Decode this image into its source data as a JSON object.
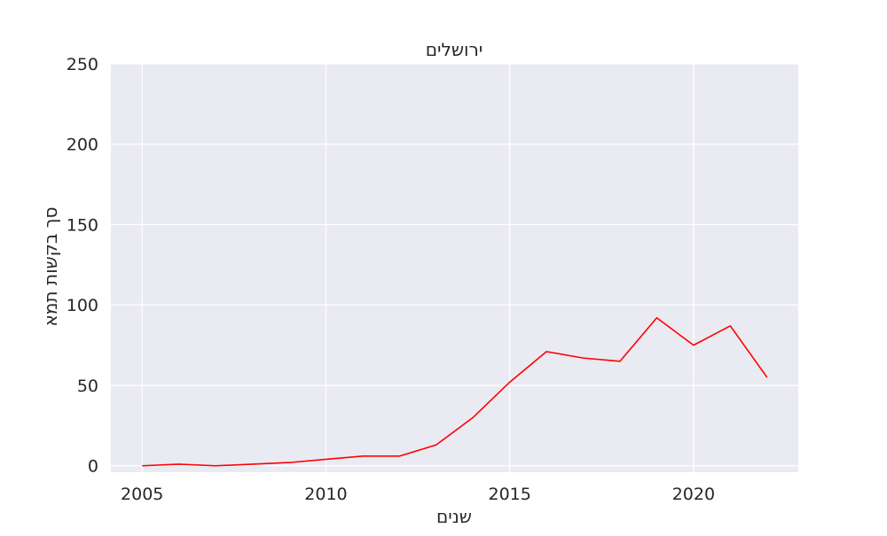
{
  "chart_data": {
    "type": "line",
    "title": "ירושלים",
    "xlabel": "שנים",
    "ylabel": "סך בקשות תמא",
    "x": [
      2005,
      2006,
      2007,
      2008,
      2009,
      2010,
      2011,
      2012,
      2013,
      2014,
      2015,
      2016,
      2017,
      2018,
      2019,
      2020,
      2021,
      2022
    ],
    "series": [
      {
        "values": [
          0,
          1,
          0,
          1,
          2,
          4,
          6,
          6,
          13,
          30,
          52,
          71,
          67,
          65,
          92,
          75,
          87,
          55
        ],
        "color": "#ff0000"
      }
    ],
    "xlim": [
      2004.15,
      2022.85
    ],
    "ylim": [
      -4,
      250
    ],
    "xticks": [
      "2005",
      "2010",
      "2015",
      "2020"
    ],
    "yticks": [
      "0",
      "50",
      "100",
      "150",
      "200",
      "250"
    ],
    "grid": true,
    "background_color": "#eaeaf2",
    "grid_color": "#ffffff"
  }
}
